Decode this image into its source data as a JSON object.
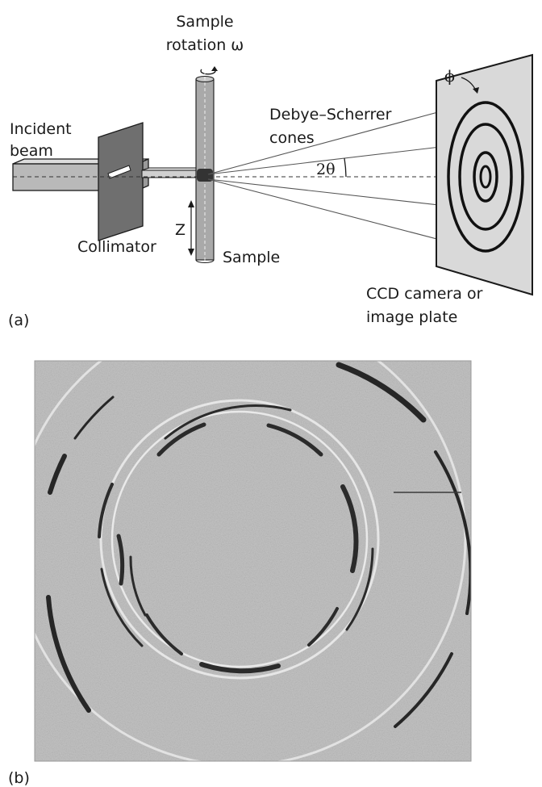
{
  "panel_a": {
    "sample_rotation": {
      "line1": "Sample",
      "line2": "rotation ω"
    },
    "debye_scherrer": {
      "line1": "Debye–Scherrer",
      "line2": "cones"
    },
    "incident_beam": {
      "line1": "Incident",
      "line2": "beam"
    },
    "two_theta": "2θ",
    "phi": "ϕ",
    "collimator": "Collimator",
    "z_axis": "Z",
    "sample": "Sample",
    "detector": {
      "line1": "CCD camera or",
      "line2": "image plate"
    },
    "panel_label": "(a)"
  },
  "panel_b": {
    "panel_label": "(b)"
  },
  "colors": {
    "ink": "#1a1a1a",
    "beam_fill": "#b9b9b9",
    "collimator_fill": "#6f6f6f",
    "sample_fill": "#a9a9a9",
    "detector_fill": "#d9d9d9",
    "diffraction_background": "#c4c4c4"
  }
}
